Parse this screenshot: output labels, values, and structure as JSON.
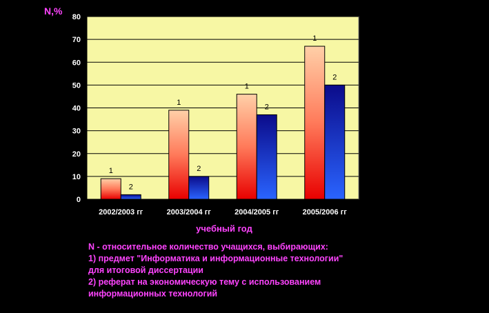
{
  "chart_data": {
    "type": "bar",
    "categories": [
      "2002/2003 гг",
      "2003/2004 гг",
      "2004/2005 гг",
      "2005/2006 гг"
    ],
    "series": [
      {
        "name": "1",
        "values": [
          9,
          39,
          46,
          67
        ]
      },
      {
        "name": "2",
        "values": [
          2,
          10,
          37,
          50
        ]
      }
    ],
    "ylabel": "N,%",
    "xlabel": "учебный год",
    "ylim": [
      0,
      80
    ],
    "yticks": [
      0,
      10,
      20,
      30,
      40,
      50,
      60,
      70,
      80
    ],
    "grid": true,
    "plot_background": "#f7f7a4",
    "series_colors": [
      "#ee1010",
      "#1515b5"
    ]
  },
  "legend": {
    "line1": "N - относительное количество учащихся, выбирающих:",
    "line2": "1) предмет \"Информатика и информационные технологии\"",
    "line3": "для итоговой диссертации",
    "line4": "2) реферат на экономическую тему с использованием",
    "line5": "информационных технологий"
  }
}
